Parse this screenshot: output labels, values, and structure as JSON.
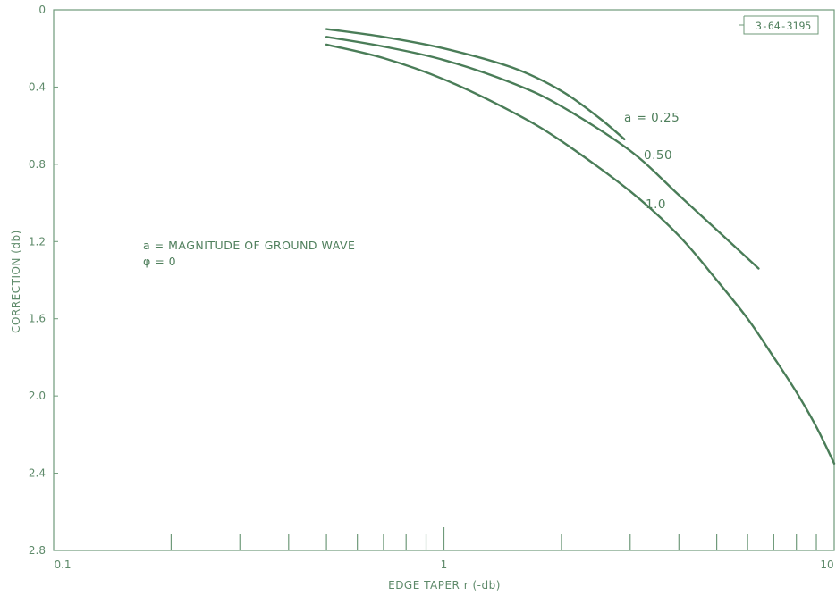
{
  "chart_data": {
    "type": "line",
    "xscale": "log",
    "xlim": [
      0.1,
      10
    ],
    "ylim": [
      0,
      2.8
    ],
    "y_inverted": true,
    "grid": false,
    "xlabel": "EDGE TAPER r (-db)",
    "ylabel": "CORRECTION (db)",
    "x_tick_labels": [
      "0.1",
      "1",
      "10"
    ],
    "y_tick_labels": [
      "0",
      "0.4",
      "0.8",
      "1.2",
      "1.6",
      "2.0",
      "2.4",
      "2.8"
    ],
    "x_ticks": [
      0.2,
      0.3,
      0.4,
      0.5,
      0.6,
      0.7,
      0.8,
      0.9,
      1,
      2,
      3,
      4,
      5,
      6,
      7,
      8,
      9
    ],
    "y_ticks": [
      0,
      0.4,
      0.8,
      1.2,
      1.6,
      2.0,
      2.4,
      2.8
    ],
    "series": [
      {
        "name": "a = 0.25",
        "x": [
          0.5,
          0.7,
          1.0,
          1.5,
          2.0,
          2.5,
          2.9
        ],
        "y": [
          0.1,
          0.14,
          0.2,
          0.3,
          0.42,
          0.56,
          0.67
        ]
      },
      {
        "name": "0.50",
        "x": [
          0.5,
          0.7,
          1.0,
          1.5,
          2.0,
          3.0,
          4.0,
          5.0,
          6.4
        ],
        "y": [
          0.14,
          0.19,
          0.26,
          0.38,
          0.5,
          0.73,
          0.96,
          1.14,
          1.34
        ]
      },
      {
        "name": "1.0",
        "x": [
          0.5,
          0.7,
          1.0,
          1.5,
          2.0,
          3.0,
          4.0,
          5.0,
          6.0,
          7.0,
          8.0,
          9.0,
          10.0
        ],
        "y": [
          0.18,
          0.25,
          0.36,
          0.53,
          0.68,
          0.94,
          1.17,
          1.4,
          1.6,
          1.8,
          1.98,
          2.16,
          2.35
        ]
      }
    ],
    "annotations": [
      "a = MAGNITUDE OF GROUND WAVE",
      "φ = 0"
    ],
    "stamp": "3-64-3195"
  },
  "colors": {
    "frame": "#6f9a7a",
    "curve": "#4a7d58",
    "text": "#5e8a6a"
  }
}
